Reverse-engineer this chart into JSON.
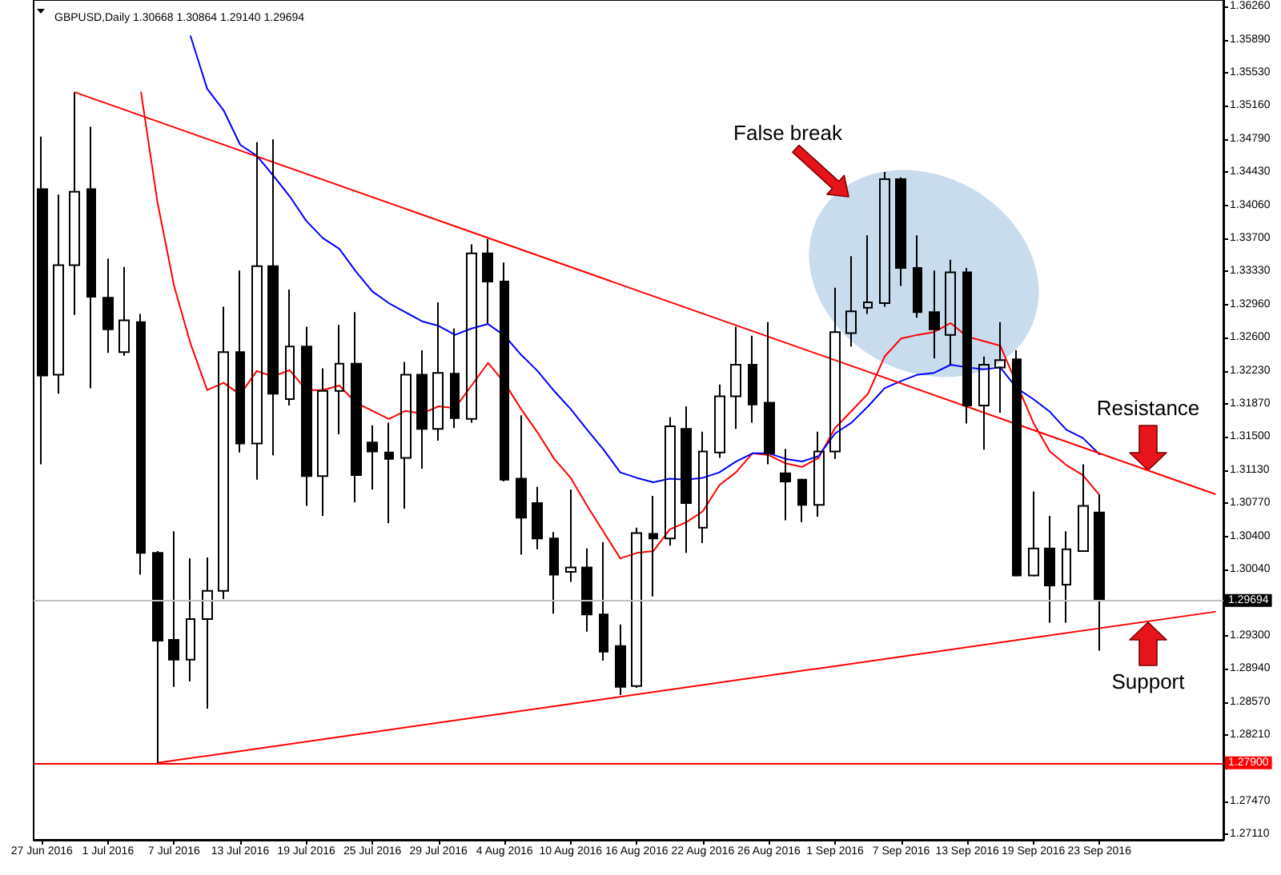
{
  "chart_data": {
    "type": "candlestick",
    "title": "GBPUSD,Daily 1.30668 1.30864 1.29140 1.29694",
    "color": "#000000",
    "marker": "none",
    "categories": [
      "27 Jun 2016",
      null,
      null,
      null,
      "1 Jul 2016",
      null,
      null,
      null,
      "7 Jul 2016",
      null,
      null,
      null,
      "13 Jul 2016",
      null,
      null,
      null,
      "19 Jul 2016",
      null,
      null,
      null,
      "25 Jul 2016",
      null,
      null,
      null,
      "29 Jul 2016",
      null,
      null,
      null,
      "4 Aug 2016",
      null,
      null,
      null,
      "10 Aug 2016",
      null,
      null,
      null,
      "16 Aug 2016",
      null,
      null,
      null,
      "22 Aug 2016",
      null,
      null,
      null,
      "26 Aug 2016",
      null,
      null,
      null,
      "1 Sep 2016",
      null,
      null,
      null,
      "7 Sep 2016",
      null,
      null,
      null,
      "13 Sep 2016",
      null,
      null,
      null,
      "19 Sep 2016",
      null,
      null,
      null,
      "23 Sep 2016",
      null,
      null,
      null,
      null,
      null,
      null,
      null
    ],
    "ohlc": [
      [
        1.3424,
        1.3482,
        1.312,
        1.3218
      ],
      [
        1.3219,
        1.3418,
        1.3198,
        1.334
      ],
      [
        1.334,
        1.3531,
        1.3285,
        1.3421
      ],
      [
        1.3424,
        1.3493,
        1.3204,
        1.3305
      ],
      [
        1.3304,
        1.3347,
        1.3243,
        1.3269
      ],
      [
        1.3244,
        1.3338,
        1.324,
        1.3279
      ],
      [
        1.3277,
        1.3286,
        1.2998,
        1.3022
      ],
      [
        1.3022,
        1.3024,
        1.279,
        1.2925
      ],
      [
        1.2926,
        1.3046,
        1.2874,
        1.2904
      ],
      [
        1.2904,
        1.3016,
        1.288,
        1.2949
      ],
      [
        1.2949,
        1.3017,
        1.285,
        1.298
      ],
      [
        1.298,
        1.3294,
        1.2971,
        1.3244
      ],
      [
        1.3244,
        1.3334,
        1.3133,
        1.3143
      ],
      [
        1.3143,
        1.3476,
        1.3103,
        1.3339
      ],
      [
        1.3339,
        1.3479,
        1.313,
        1.3198
      ],
      [
        1.3192,
        1.3313,
        1.3185,
        1.325
      ],
      [
        1.325,
        1.3272,
        1.3074,
        1.3107
      ],
      [
        1.3107,
        1.3226,
        1.3063,
        1.3201
      ],
      [
        1.3201,
        1.3274,
        1.3153,
        1.3231
      ],
      [
        1.3231,
        1.3288,
        1.3078,
        1.3108
      ],
      [
        1.3144,
        1.3163,
        1.3092,
        1.3134
      ],
      [
        1.3133,
        1.3166,
        1.3055,
        1.3126
      ],
      [
        1.3127,
        1.3233,
        1.3071,
        1.3219
      ],
      [
        1.3219,
        1.3246,
        1.3115,
        1.3159
      ],
      [
        1.3159,
        1.3299,
        1.3146,
        1.3221
      ],
      [
        1.322,
        1.327,
        1.316,
        1.3171
      ],
      [
        1.317,
        1.3363,
        1.3166,
        1.3353
      ],
      [
        1.3353,
        1.3369,
        1.3276,
        1.3322
      ],
      [
        1.3322,
        1.3343,
        1.3101,
        1.3103
      ],
      [
        1.3104,
        1.3174,
        1.302,
        1.3061
      ],
      [
        1.3077,
        1.3095,
        1.3026,
        1.3038
      ],
      [
        1.3038,
        1.3045,
        1.2955,
        1.2998
      ],
      [
        1.3001,
        1.3092,
        1.299,
        1.3006
      ],
      [
        1.3006,
        1.3027,
        1.2935,
        1.2954
      ],
      [
        1.2954,
        1.3034,
        1.2903,
        1.2913
      ],
      [
        1.2919,
        1.2943,
        1.2865,
        1.2874
      ],
      [
        1.2875,
        1.305,
        1.2873,
        1.3044
      ],
      [
        1.3043,
        1.3085,
        1.2974,
        1.3038
      ],
      [
        1.3038,
        1.3172,
        1.303,
        1.3162
      ],
      [
        1.3159,
        1.3184,
        1.3022,
        1.3077
      ],
      [
        1.305,
        1.3156,
        1.3033,
        1.3134
      ],
      [
        1.3133,
        1.3208,
        1.3127,
        1.3195
      ],
      [
        1.3195,
        1.3272,
        1.3159,
        1.323
      ],
      [
        1.323,
        1.3262,
        1.3166,
        1.3186
      ],
      [
        1.3188,
        1.3277,
        1.312,
        1.3132
      ],
      [
        1.311,
        1.3137,
        1.3058,
        1.3101
      ],
      [
        1.3103,
        1.3104,
        1.3056,
        1.3075
      ],
      [
        1.3075,
        1.3156,
        1.3062,
        1.3134
      ],
      [
        1.3134,
        1.3315,
        1.3126,
        1.3266
      ],
      [
        1.3265,
        1.335,
        1.325,
        1.3289
      ],
      [
        1.3293,
        1.3373,
        1.3286,
        1.3299
      ],
      [
        1.3298,
        1.3443,
        1.3294,
        1.3435
      ],
      [
        1.3435,
        1.3437,
        1.3317,
        1.3337
      ],
      [
        1.3337,
        1.3373,
        1.3282,
        1.3288
      ],
      [
        1.3288,
        1.3334,
        1.3237,
        1.3269
      ],
      [
        1.3263,
        1.3346,
        1.323,
        1.3332
      ],
      [
        1.3332,
        1.3337,
        1.3165,
        1.3185
      ],
      [
        1.3185,
        1.3239,
        1.3136,
        1.323
      ],
      [
        1.3227,
        1.3277,
        1.3177,
        1.3235
      ],
      [
        1.3236,
        1.3246,
        1.2996,
        1.2997
      ],
      [
        1.2997,
        1.309,
        1.2996,
        1.3027
      ],
      [
        1.3027,
        1.3063,
        1.2945,
        1.2986
      ],
      [
        1.2987,
        1.3046,
        1.2945,
        1.3026
      ],
      [
        1.3024,
        1.312,
        1.3024,
        1.3074
      ],
      [
        1.30668,
        1.30864,
        1.2914,
        1.29694
      ],
      null,
      null,
      null,
      null,
      null,
      null,
      null
    ],
    "series": [
      {
        "type": "line",
        "color": "#ff0000",
        "values": [
          null,
          null,
          null,
          null,
          null,
          null,
          1.3531,
          1.3409,
          1.3317,
          1.3253,
          1.3202,
          1.321,
          1.3197,
          1.3223,
          1.3217,
          1.3224,
          1.3202,
          1.3202,
          1.3207,
          1.3188,
          1.3179,
          1.317,
          1.3179,
          1.3176,
          1.3184,
          1.3182,
          1.3207,
          1.3232,
          1.321,
          1.3181,
          1.3155,
          1.3126,
          1.3105,
          1.3074,
          1.3045,
          1.3016,
          1.3022,
          1.3024,
          1.3048,
          1.3056,
          1.3068,
          1.3097,
          1.3111,
          1.3132,
          1.313,
          1.3121,
          1.3117,
          1.3127,
          1.316,
          1.3179,
          1.3198,
          1.3239,
          1.3259,
          1.3263,
          1.3266,
          1.3276,
          1.3261,
          1.3256,
          1.3251,
          null,
          1.3166,
          1.3134,
          1.3119,
          1.3108,
          1.3086,
          null,
          null,
          null,
          null,
          null,
          null,
          null
        ]
      },
      {
        "type": "line",
        "color": "#0000ff",
        "values": [
          null,
          null,
          null,
          null,
          null,
          null,
          null,
          null,
          null,
          1.3593,
          1.3535,
          1.3511,
          1.3473,
          1.3461,
          1.3439,
          1.3416,
          1.3389,
          1.337,
          1.3358,
          1.3333,
          1.3311,
          1.3298,
          1.3288,
          1.3278,
          1.3273,
          1.3263,
          1.327,
          1.3275,
          1.3262,
          1.3241,
          1.3223,
          1.3201,
          1.3181,
          1.3158,
          1.3136,
          1.3111,
          1.3105,
          1.31,
          1.3104,
          1.3103,
          1.3105,
          1.3111,
          1.3123,
          1.3132,
          1.3132,
          1.3126,
          1.3123,
          1.3129,
          1.3154,
          1.3166,
          1.3184,
          1.3204,
          1.3212,
          1.3219,
          1.3221,
          1.323,
          1.3227,
          1.3225,
          1.3227,
          1.3204,
          1.3192,
          1.3178,
          1.3158,
          1.3149,
          1.3131,
          null,
          null,
          null,
          null,
          null,
          null,
          null
        ]
      },
      {
        "type": "line",
        "color": "#ff0000",
        "values": [
          null,
          null,
          1.3531,
          null,
          null,
          null,
          null,
          null,
          null,
          null,
          null,
          null,
          null,
          null,
          null,
          null,
          null,
          null,
          null,
          null,
          null,
          null,
          null,
          null,
          null,
          null,
          null,
          null,
          null,
          null,
          null,
          null,
          null,
          null,
          null,
          null,
          null,
          null,
          null,
          null,
          null,
          null,
          null,
          null,
          null,
          null,
          null,
          null,
          null,
          null,
          null,
          null,
          null,
          null,
          null,
          null,
          null,
          null,
          null,
          null,
          null,
          null,
          null,
          null,
          null,
          null,
          null,
          null,
          null,
          null,
          null,
          1.3087
        ]
      },
      {
        "type": "line",
        "color": "#ff0000",
        "values": [
          null,
          null,
          null,
          null,
          null,
          null,
          null,
          1.279,
          null,
          null,
          null,
          null,
          null,
          null,
          null,
          null,
          null,
          null,
          null,
          null,
          null,
          null,
          null,
          null,
          null,
          null,
          null,
          null,
          null,
          null,
          null,
          null,
          null,
          null,
          null,
          null,
          null,
          null,
          null,
          null,
          null,
          null,
          null,
          null,
          null,
          null,
          null,
          null,
          null,
          null,
          null,
          null,
          null,
          null,
          null,
          null,
          null,
          null,
          null,
          null,
          null,
          null,
          null,
          null,
          null,
          null,
          null,
          null,
          null,
          null,
          null,
          1.2957
        ]
      }
    ],
    "ylim": [
      1.2705,
      1.3633
    ],
    "yticks": [
      {
        "value": 1.2711,
        "label": "1.27110"
      },
      {
        "value": 1.2747,
        "label": "1.27470"
      },
      {
        "value": 1.2784,
        "label": null
      },
      {
        "value": 1.2821,
        "label": "1.28210"
      },
      {
        "value": 1.2857,
        "label": "1.28570"
      },
      {
        "value": 1.2894,
        "label": "1.28940"
      },
      {
        "value": 1.293,
        "label": "1.29300"
      },
      {
        "value": 1.2967,
        "label": null
      },
      {
        "value": 1.3004,
        "label": "1.30040"
      },
      {
        "value": 1.304,
        "label": "1.30400"
      },
      {
        "value": 1.3077,
        "label": "1.30770"
      },
      {
        "value": 1.3113,
        "label": "1.31130"
      },
      {
        "value": 1.315,
        "label": "1.31500"
      },
      {
        "value": 1.3187,
        "label": "1.31870"
      },
      {
        "value": 1.3223,
        "label": "1.32230"
      },
      {
        "value": 1.326,
        "label": "1.32600"
      },
      {
        "value": 1.3296,
        "label": "1.32960"
      },
      {
        "value": 1.3333,
        "label": "1.33330"
      },
      {
        "value": 1.337,
        "label": "1.33700"
      },
      {
        "value": 1.3406,
        "label": "1.34060"
      },
      {
        "value": 1.3443,
        "label": "1.34430"
      },
      {
        "value": 1.3479,
        "label": "1.34790"
      },
      {
        "value": 1.3516,
        "label": "1.35160"
      },
      {
        "value": 1.3553,
        "label": "1.35530"
      },
      {
        "value": 1.3589,
        "label": "1.35890"
      },
      {
        "value": 1.3626,
        "label": "1.36260"
      }
    ],
    "ref_lines": [
      {
        "axis": "y",
        "value": 1.29694,
        "label": "1.29694",
        "color": "#c0c0c0"
      },
      {
        "axis": "y",
        "value": 1.279,
        "label": "1.27900",
        "color": "#ff0000"
      }
    ],
    "annotations": [
      "False break",
      "Resistance",
      "Support"
    ]
  }
}
